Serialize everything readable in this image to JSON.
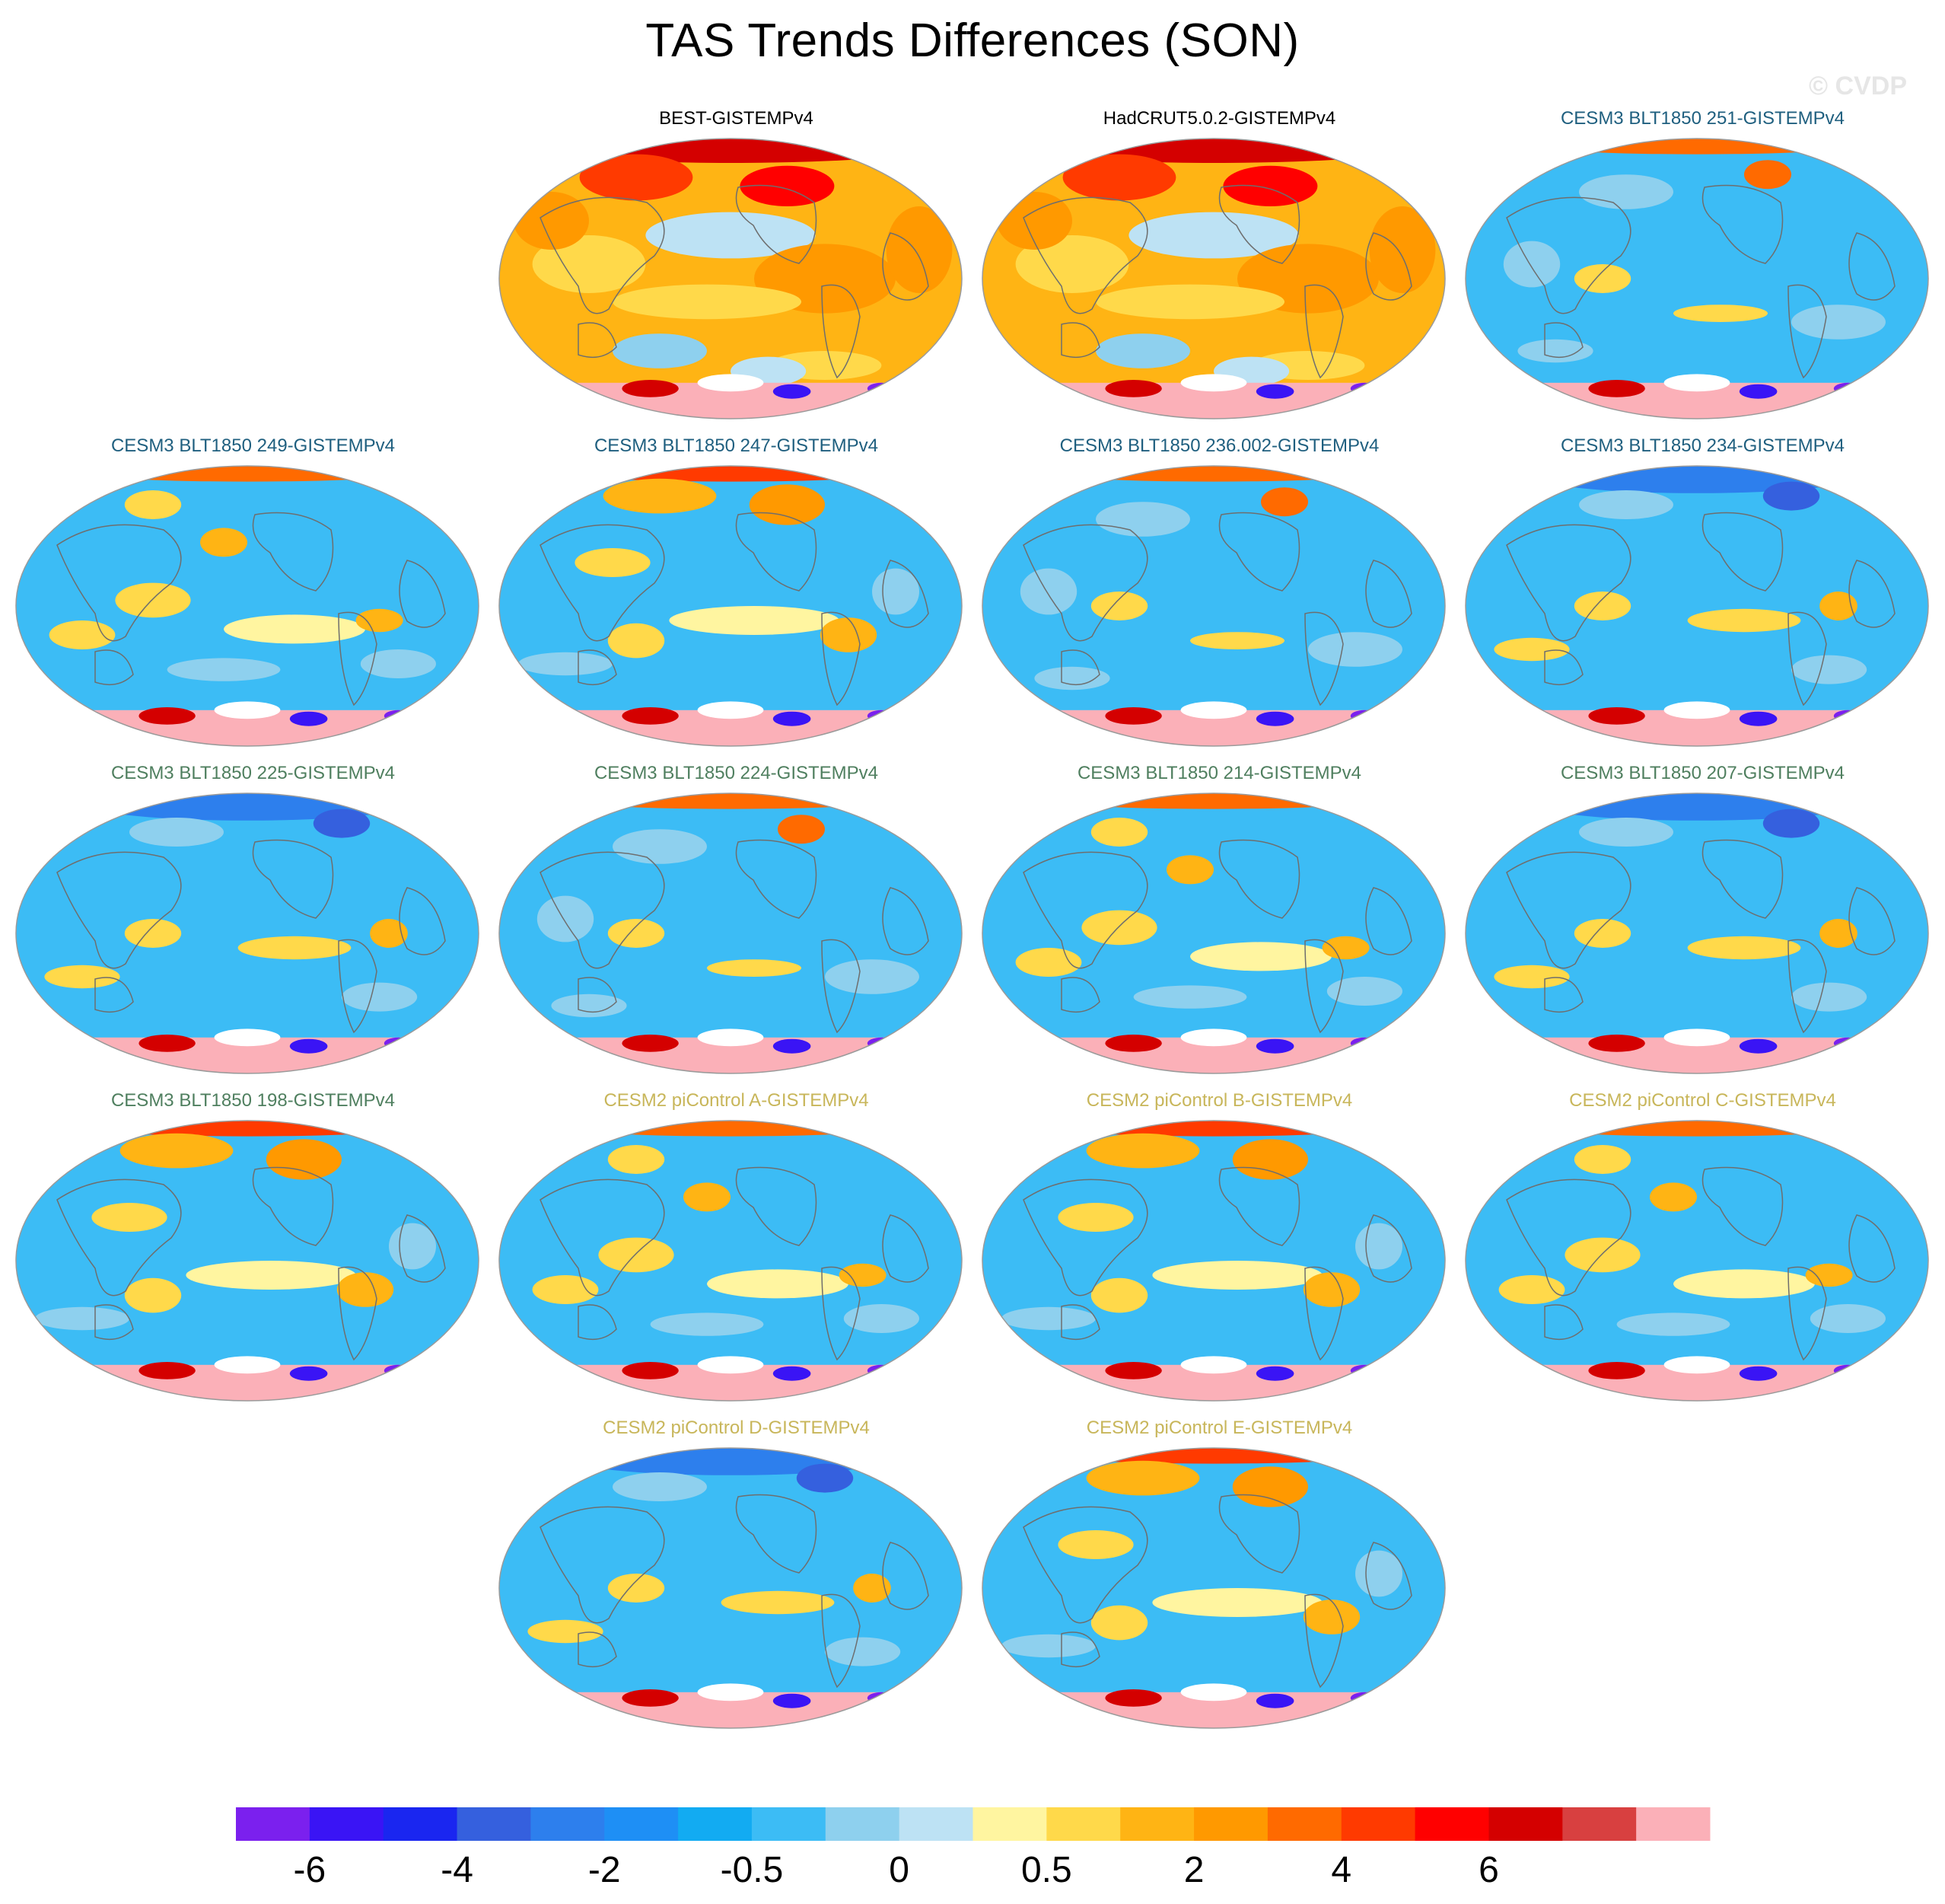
{
  "title": "TAS Trends Differences (SON)",
  "watermark": "© CVDP",
  "colors": {
    "obs_title": "#000000",
    "cesm3_blue_title": "#1f5f7f",
    "cesm3_green_title": "#4f7f5f",
    "cesm2_title": "#c8b65a",
    "land_outline": "#6e6e6e",
    "map_outline": "#9a9a9a"
  },
  "panels": [
    {
      "label": "BEST-GISTEMPv4",
      "group": "obs",
      "row": 0,
      "col": 1,
      "pattern": "warm_obs"
    },
    {
      "label": "HadCRUT5.0.2-GISTEMPv4",
      "group": "obs",
      "row": 0,
      "col": 2,
      "pattern": "warm_obs"
    },
    {
      "label": "CESM3 BLT1850 251-GISTEMPv4",
      "group": "cesm3_blue",
      "row": 0,
      "col": 3,
      "pattern": "cool"
    },
    {
      "label": "CESM3 BLT1850 249-GISTEMPv4",
      "group": "cesm3_blue",
      "row": 1,
      "col": 0,
      "pattern": "cool_mixed"
    },
    {
      "label": "CESM3 BLT1850 247-GISTEMPv4",
      "group": "cesm3_blue",
      "row": 1,
      "col": 1,
      "pattern": "mixed_warm"
    },
    {
      "label": "CESM3 BLT1850 236.002-GISTEMPv4",
      "group": "cesm3_blue",
      "row": 1,
      "col": 2,
      "pattern": "cool"
    },
    {
      "label": "CESM3 BLT1850 234-GISTEMPv4",
      "group": "cesm3_blue",
      "row": 1,
      "col": 3,
      "pattern": "cool_arctic"
    },
    {
      "label": "CESM3 BLT1850 225-GISTEMPv4",
      "group": "cesm3_green",
      "row": 2,
      "col": 0,
      "pattern": "cool_arctic"
    },
    {
      "label": "CESM3 BLT1850 224-GISTEMPv4",
      "group": "cesm3_green",
      "row": 2,
      "col": 1,
      "pattern": "cool"
    },
    {
      "label": "CESM3 BLT1850 214-GISTEMPv4",
      "group": "cesm3_green",
      "row": 2,
      "col": 2,
      "pattern": "cool_mixed"
    },
    {
      "label": "CESM3 BLT1850 207-GISTEMPv4",
      "group": "cesm3_green",
      "row": 2,
      "col": 3,
      "pattern": "cool_arctic"
    },
    {
      "label": "CESM3 BLT1850 198-GISTEMPv4",
      "group": "cesm3_green",
      "row": 3,
      "col": 0,
      "pattern": "mixed_warm"
    },
    {
      "label": "CESM2 piControl A-GISTEMPv4",
      "group": "cesm2",
      "row": 3,
      "col": 1,
      "pattern": "cool_mixed"
    },
    {
      "label": "CESM2 piControl B-GISTEMPv4",
      "group": "cesm2",
      "row": 3,
      "col": 2,
      "pattern": "mixed_warm"
    },
    {
      "label": "CESM2 piControl C-GISTEMPv4",
      "group": "cesm2",
      "row": 3,
      "col": 3,
      "pattern": "cool_mixed"
    },
    {
      "label": "CESM2 piControl D-GISTEMPv4",
      "group": "cesm2",
      "row": 4,
      "col": 1,
      "pattern": "cool_arctic"
    },
    {
      "label": "CESM2 piControl E-GISTEMPv4",
      "group": "cesm2",
      "row": 4,
      "col": 2,
      "pattern": "mixed_warm"
    }
  ],
  "chart_data": {
    "type": "heatmap",
    "title": "TAS Trends Differences (SON)",
    "projection": "robinson-like global maps",
    "colorbar": {
      "colors": [
        "#7b20ee",
        "#3a14f5",
        "#1a26f0",
        "#3560de",
        "#2d7fed",
        "#1e8ff5",
        "#12abf2",
        "#3cbcf5",
        "#8ed0ee",
        "#bde2f4",
        "#fff5a0",
        "#ffd94a",
        "#ffb414",
        "#ff9900",
        "#ff6a00",
        "#ff3a00",
        "#ff0000",
        "#d40000",
        "#d84040",
        "#fbb0b8"
      ],
      "tick_labels": [
        "-6",
        "-4",
        "-2",
        "-0.5",
        "0",
        "0.5",
        "2",
        "4",
        "6"
      ],
      "tick_boundaries": [
        1,
        3,
        5,
        7,
        9,
        11,
        13,
        15,
        17
      ]
    }
  }
}
